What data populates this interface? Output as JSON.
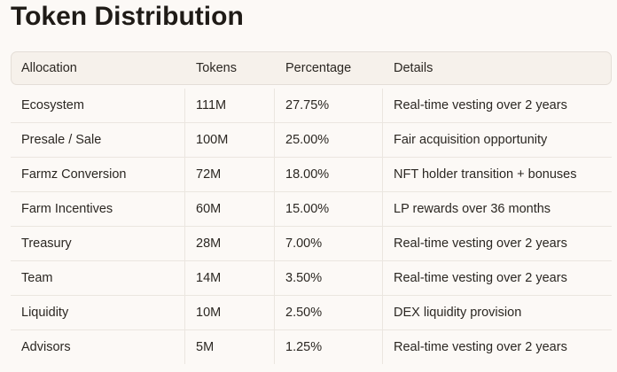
{
  "header": {
    "title": "Token Distribution"
  },
  "table": {
    "columns": [
      "Allocation",
      "Tokens",
      "Percentage",
      "Details"
    ],
    "rows": [
      [
        "Ecosystem",
        "111M",
        "27.75%",
        "Real-time vesting over 2 years"
      ],
      [
        "Presale / Sale",
        "100M",
        "25.00%",
        "Fair acquisition opportunity"
      ],
      [
        "Farmz Conversion",
        "72M",
        "18.00%",
        "NFT holder transition + bonuses"
      ],
      [
        "Farm Incentives",
        "60M",
        "15.00%",
        "LP rewards over 36 months"
      ],
      [
        "Treasury",
        "28M",
        "7.00%",
        "Real-time vesting over 2 years"
      ],
      [
        "Team",
        "14M",
        "3.50%",
        "Real-time vesting over 2 years"
      ],
      [
        "Liquidity",
        "10M",
        "2.50%",
        "DEX liquidity provision"
      ],
      [
        "Advisors",
        "5M",
        "1.25%",
        "Real-time vesting over 2 years"
      ]
    ]
  }
}
